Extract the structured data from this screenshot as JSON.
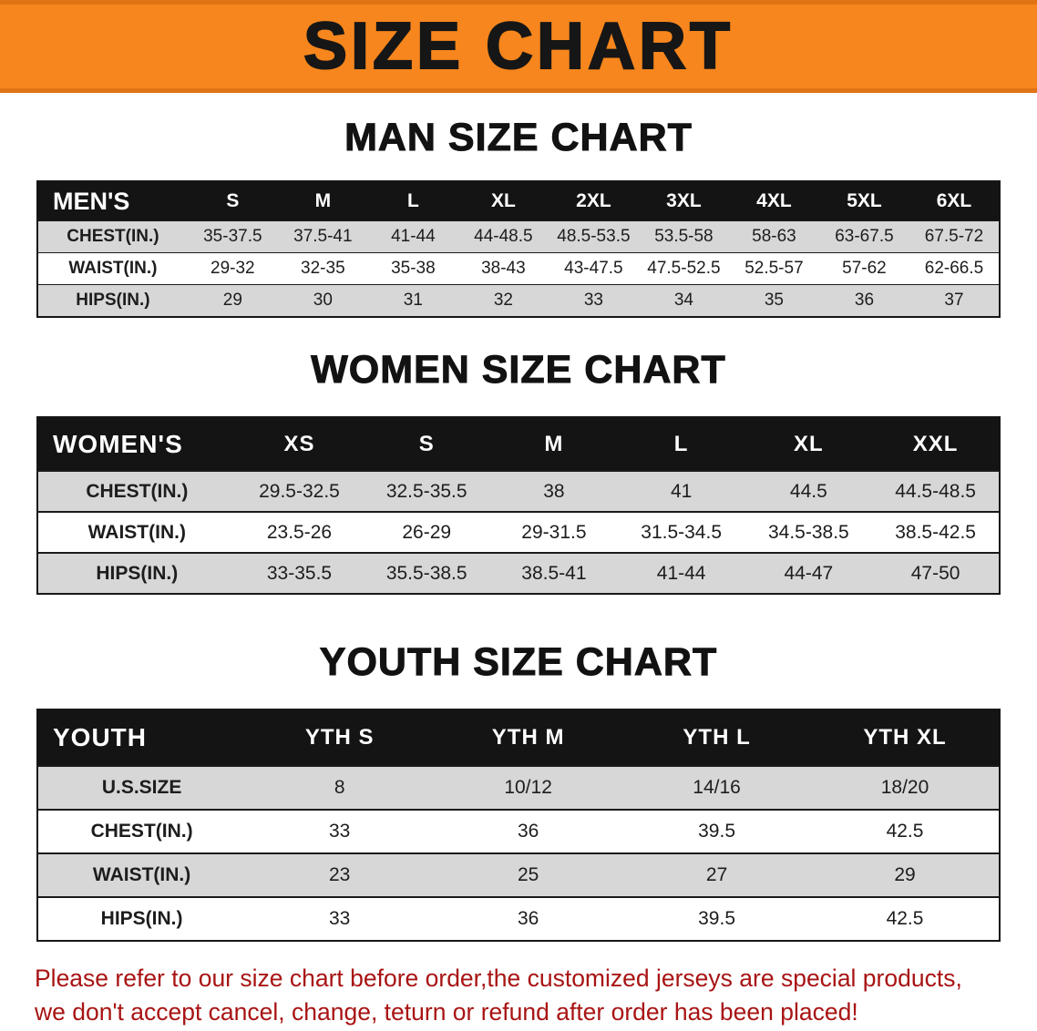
{
  "banner": {
    "title": "SIZE CHART"
  },
  "headings": {
    "men": "MAN SIZE CHART",
    "women": "WOMEN SIZE CHART",
    "youth": "YOUTH SIZE CHART"
  },
  "tables": {
    "men": {
      "header": [
        "MEN'S",
        "S",
        "M",
        "L",
        "XL",
        "2XL",
        "3XL",
        "4XL",
        "5XL",
        "6XL"
      ],
      "rows": [
        {
          "label": "CHEST(IN.)",
          "values": [
            "35-37.5",
            "37.5-41",
            "41-44",
            "44-48.5",
            "48.5-53.5",
            "53.5-58",
            "58-63",
            "63-67.5",
            "67.5-72"
          ]
        },
        {
          "label": "WAIST(IN.)",
          "values": [
            "29-32",
            "32-35",
            "35-38",
            "38-43",
            "43-47.5",
            "47.5-52.5",
            "52.5-57",
            "57-62",
            "62-66.5"
          ]
        },
        {
          "label": "HIPS(IN.)",
          "values": [
            "29",
            "30",
            "31",
            "32",
            "33",
            "34",
            "35",
            "36",
            "37"
          ]
        }
      ]
    },
    "women": {
      "header": [
        "WOMEN'S",
        "XS",
        "S",
        "M",
        "L",
        "XL",
        "XXL"
      ],
      "rows": [
        {
          "label": "CHEST(IN.)",
          "values": [
            "29.5-32.5",
            "32.5-35.5",
            "38",
            "41",
            "44.5",
            "44.5-48.5"
          ]
        },
        {
          "label": "WAIST(IN.)",
          "values": [
            "23.5-26",
            "26-29",
            "29-31.5",
            "31.5-34.5",
            "34.5-38.5",
            "38.5-42.5"
          ]
        },
        {
          "label": "HIPS(IN.)",
          "values": [
            "33-35.5",
            "35.5-38.5",
            "38.5-41",
            "41-44",
            "44-47",
            "47-50"
          ]
        }
      ]
    },
    "youth": {
      "header": [
        "YOUTH",
        "YTH S",
        "YTH M",
        "YTH L",
        "YTH XL"
      ],
      "rows": [
        {
          "label": "U.S.SIZE",
          "values": [
            "8",
            "10/12",
            "14/16",
            "18/20"
          ]
        },
        {
          "label": "CHEST(IN.)",
          "values": [
            "33",
            "36",
            "39.5",
            "42.5"
          ]
        },
        {
          "label": "WAIST(IN.)",
          "values": [
            "23",
            "25",
            "27",
            "29"
          ]
        },
        {
          "label": "HIPS(IN.)",
          "values": [
            "33",
            "36",
            "39.5",
            "42.5"
          ]
        }
      ]
    }
  },
  "disclaimer": {
    "line1": "Please refer to our size chart before order,the customized jerseys are special products,",
    "line2": "we don't accept cancel, change, teturn or refund after order has been placed!"
  }
}
